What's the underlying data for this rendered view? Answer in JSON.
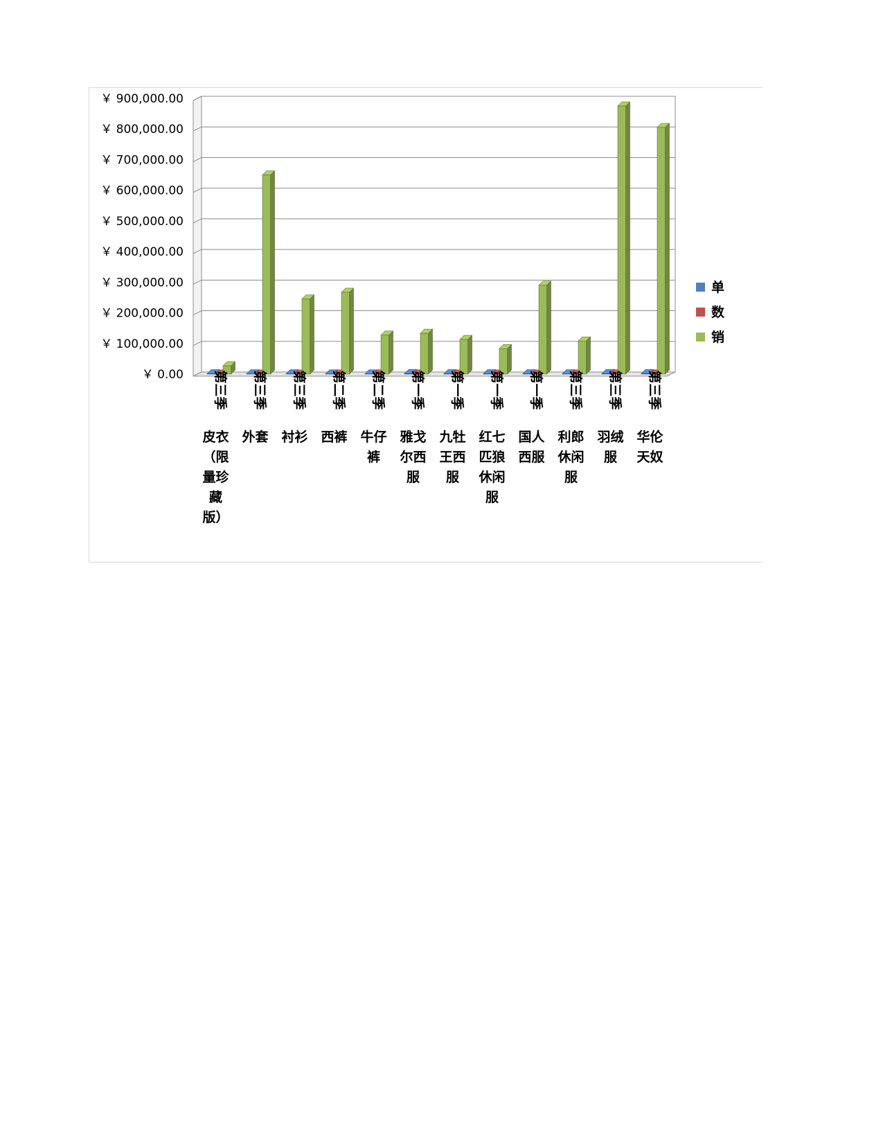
{
  "chart_data": {
    "type": "bar",
    "title": "",
    "xlabel": "",
    "ylabel": "",
    "ylim": [
      0,
      900000
    ],
    "y_ticks": [
      "￥ 0.00",
      "￥ 100,000.00",
      "￥ 200,000.00",
      "￥ 300,000.00",
      "￥ 400,000.00",
      "￥ 500,000.00",
      "￥ 600,000.00",
      "￥ 700,000.00",
      "￥ 800,000.00",
      "￥ 900,000.00"
    ],
    "grid": true,
    "legend_position": "right",
    "categories": [
      {
        "quarter": "第三季",
        "name": "皮衣（限量珍藏版）",
        "lines": [
          "皮衣",
          "（限",
          "量珍",
          "藏",
          "版）"
        ]
      },
      {
        "quarter": "第三季",
        "name": "外套",
        "lines": [
          "外套"
        ]
      },
      {
        "quarter": "第三季",
        "name": "衬衫",
        "lines": [
          "衬衫"
        ]
      },
      {
        "quarter": "第二季",
        "name": "西裤",
        "lines": [
          "西裤"
        ]
      },
      {
        "quarter": "第二季",
        "name": "牛仔裤",
        "lines": [
          "牛仔",
          "裤"
        ]
      },
      {
        "quarter": "第一季",
        "name": "雅戈尔西服",
        "lines": [
          "雅戈",
          "尔西",
          "服"
        ]
      },
      {
        "quarter": "第一季",
        "name": "九牡王西服",
        "lines": [
          "九牡",
          "王西",
          "服"
        ]
      },
      {
        "quarter": "第一季",
        "name": "红七匹狼休闲服",
        "lines": [
          "红七",
          "匹狼",
          "休闲",
          "服"
        ]
      },
      {
        "quarter": "第一季",
        "name": "国人西服",
        "lines": [
          "国人",
          "西服"
        ]
      },
      {
        "quarter": "第三季",
        "name": "利郎休闲服",
        "lines": [
          "利郎",
          "休闲",
          "服"
        ]
      },
      {
        "quarter": "第三季",
        "name": "羽绒服",
        "lines": [
          "羽绒",
          "服"
        ]
      },
      {
        "quarter": "第三季",
        "name": "华伦天奴",
        "lines": [
          "华伦",
          "天奴"
        ]
      }
    ],
    "series": [
      {
        "name": "单",
        "color": "#4f81bd",
        "values": [
          900,
          700,
          600,
          500,
          500,
          1200,
          1000,
          1100,
          900,
          800,
          1300,
          1300
        ]
      },
      {
        "name": "数",
        "color": "#c0504d",
        "values": [
          300,
          200,
          300,
          300,
          400,
          200,
          300,
          300,
          300,
          300,
          600,
          500
        ]
      },
      {
        "name": "销",
        "color": "#9bbb59",
        "values": [
          27000,
          650000,
          245000,
          267000,
          127000,
          133000,
          113000,
          83000,
          290000,
          108000,
          875000,
          805000
        ]
      }
    ]
  }
}
